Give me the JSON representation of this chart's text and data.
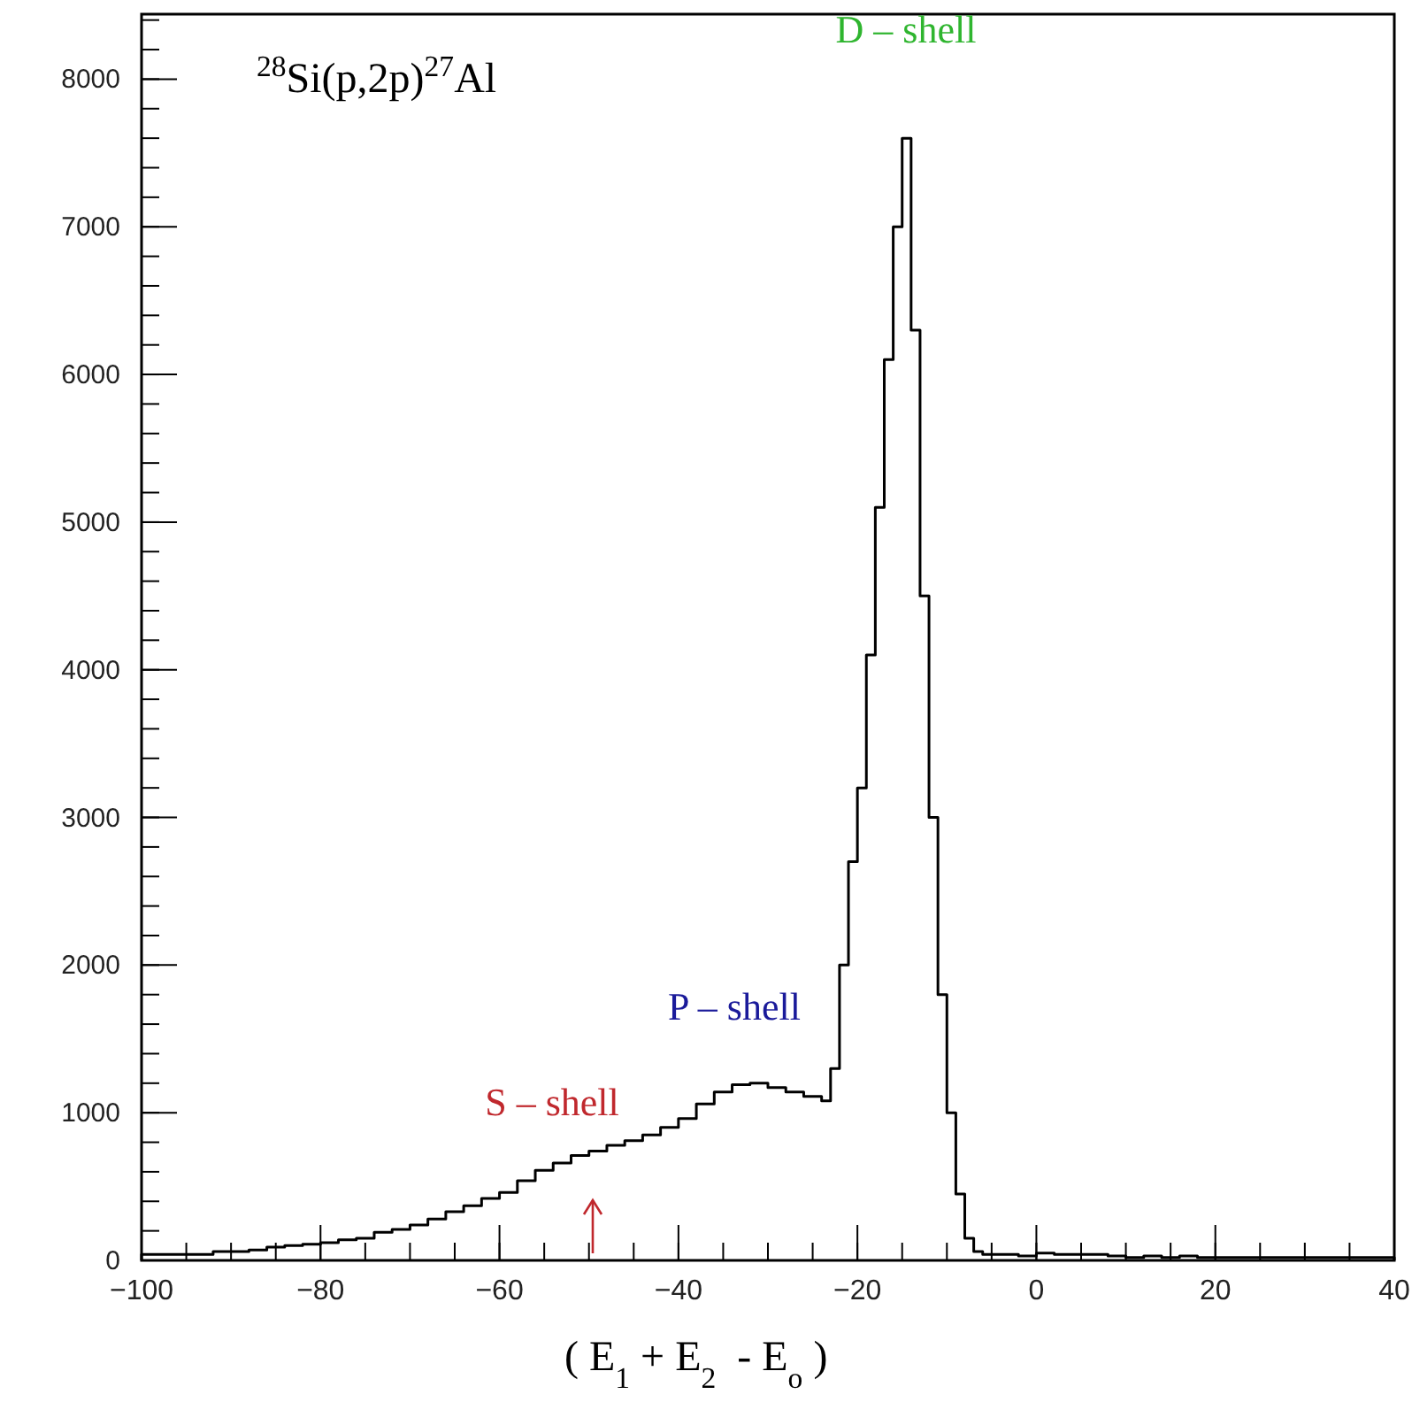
{
  "chart_data": {
    "type": "histogram",
    "title": "$^{28}$Si(p,2p)$^{27}$Al",
    "xlabel": "( E$_{1}$ + E$_{2}$  - E$_{o}$ )",
    "bins": [
      -100,
      -98,
      -96,
      -94,
      -92,
      -90,
      -88,
      -86,
      -84,
      -82,
      -80,
      -78,
      -76,
      -74,
      -72,
      -70,
      -68,
      -66,
      -64,
      -62,
      -60,
      -58,
      -56,
      -54,
      -52,
      -50,
      -48,
      -46,
      -44,
      -42,
      -40,
      -38,
      -36,
      -34,
      -32,
      -30,
      -28,
      -26,
      -24,
      -23,
      -22,
      -21,
      -20,
      -19,
      -18,
      -17,
      -16,
      -15,
      -14,
      -13,
      -12,
      -11,
      -10,
      -9,
      -8,
      -7,
      -6,
      -4,
      -2,
      0,
      2,
      4,
      6,
      8,
      10,
      12,
      14,
      16,
      18,
      20,
      22,
      24,
      26,
      28,
      30,
      32,
      34,
      36,
      38,
      40
    ],
    "values": [
      40,
      40,
      40,
      40,
      60,
      60,
      70,
      90,
      100,
      110,
      120,
      140,
      150,
      190,
      210,
      240,
      280,
      330,
      370,
      420,
      460,
      540,
      610,
      660,
      710,
      740,
      780,
      810,
      850,
      900,
      960,
      1060,
      1140,
      1190,
      1200,
      1170,
      1140,
      1110,
      1080,
      1300,
      2000,
      2700,
      3200,
      4100,
      5100,
      6100,
      7000,
      7600,
      6300,
      4500,
      3000,
      1800,
      1000,
      450,
      150,
      60,
      40,
      40,
      30,
      50,
      40,
      40,
      40,
      30,
      20,
      30,
      20,
      30,
      20,
      20,
      20,
      20,
      20,
      20,
      20,
      20,
      20,
      20,
      20
    ],
    "color": "#000000",
    "annotations": [
      "S – shell",
      "P – shell",
      "D – shell"
    ],
    "xlim": [
      -100,
      40
    ],
    "xticks": [
      -100,
      -80,
      -60,
      -40,
      -20,
      0,
      20,
      40
    ],
    "ylim": [
      0,
      8440
    ],
    "yticks": [
      0,
      1000,
      2000,
      3000,
      4000,
      5000,
      6000,
      7000,
      8000
    ],
    "grid": false
  }
}
